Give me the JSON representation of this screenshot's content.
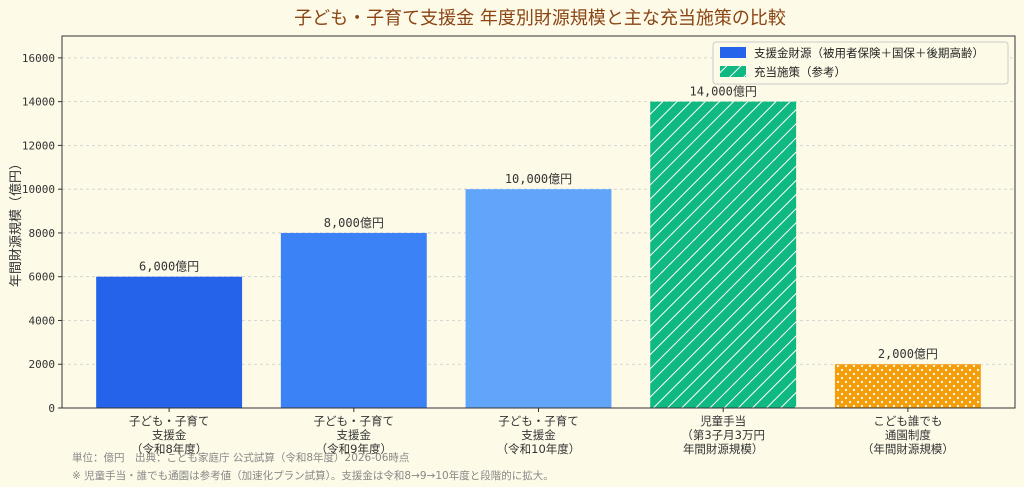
{
  "colors": {
    "background": "#fdfae8",
    "title": "#8b4513",
    "funding": [
      "#2563eb",
      "#3b82f6",
      "#60a5fa"
    ],
    "benefit_child": "#10b981",
    "benefit_daycare": "#f59e0b"
  },
  "chart_data": {
    "type": "bar",
    "title": "子ども・子育て支援金 年度別財源規模と主な充当施策の比較",
    "xlabel": "",
    "ylabel": "年間財源規模（億円）",
    "ylim": [
      0,
      17000
    ],
    "yticks": [
      0,
      2000,
      4000,
      6000,
      8000,
      10000,
      12000,
      14000,
      16000
    ],
    "grid": true,
    "legend_position": "top-right",
    "categories": [
      [
        "子ども・子育て",
        "支援金",
        "（令和8年度）"
      ],
      [
        "子ども・子育て",
        "支援金",
        "（令和9年度）"
      ],
      [
        "子ども・子育て",
        "支援金",
        "（令和10年度）"
      ],
      [
        "児童手当",
        "（第3子月3万円",
        "年間財源規模）"
      ],
      [
        "こども誰でも",
        "通園制度",
        "（年間財源規模）"
      ]
    ],
    "values": [
      6000,
      8000,
      10000,
      14000,
      2000
    ],
    "value_labels": [
      "6,000億円",
      "8,000億円",
      "10,000億円",
      "14,000億円",
      "2,000億円"
    ],
    "bar_styles": [
      "funding",
      "funding",
      "funding",
      "hatch",
      "dots"
    ],
    "series": [
      {
        "name": "支援金財源（被用者保険＋国保＋後期高齢）",
        "values": [
          6000,
          8000,
          10000,
          null,
          null
        ]
      },
      {
        "name": "充当施策（参考）",
        "values": [
          null,
          null,
          null,
          14000,
          2000
        ]
      }
    ]
  },
  "footnotes": {
    "source": "単位：億円　出典：こども家庭庁 公式試算（令和8年度）2026-06時点",
    "note": "※ 児童手当・誰でも通園は参考値（加速化プラン試算）。支援金は令和8→9→10年度と段階的に拡大。"
  }
}
